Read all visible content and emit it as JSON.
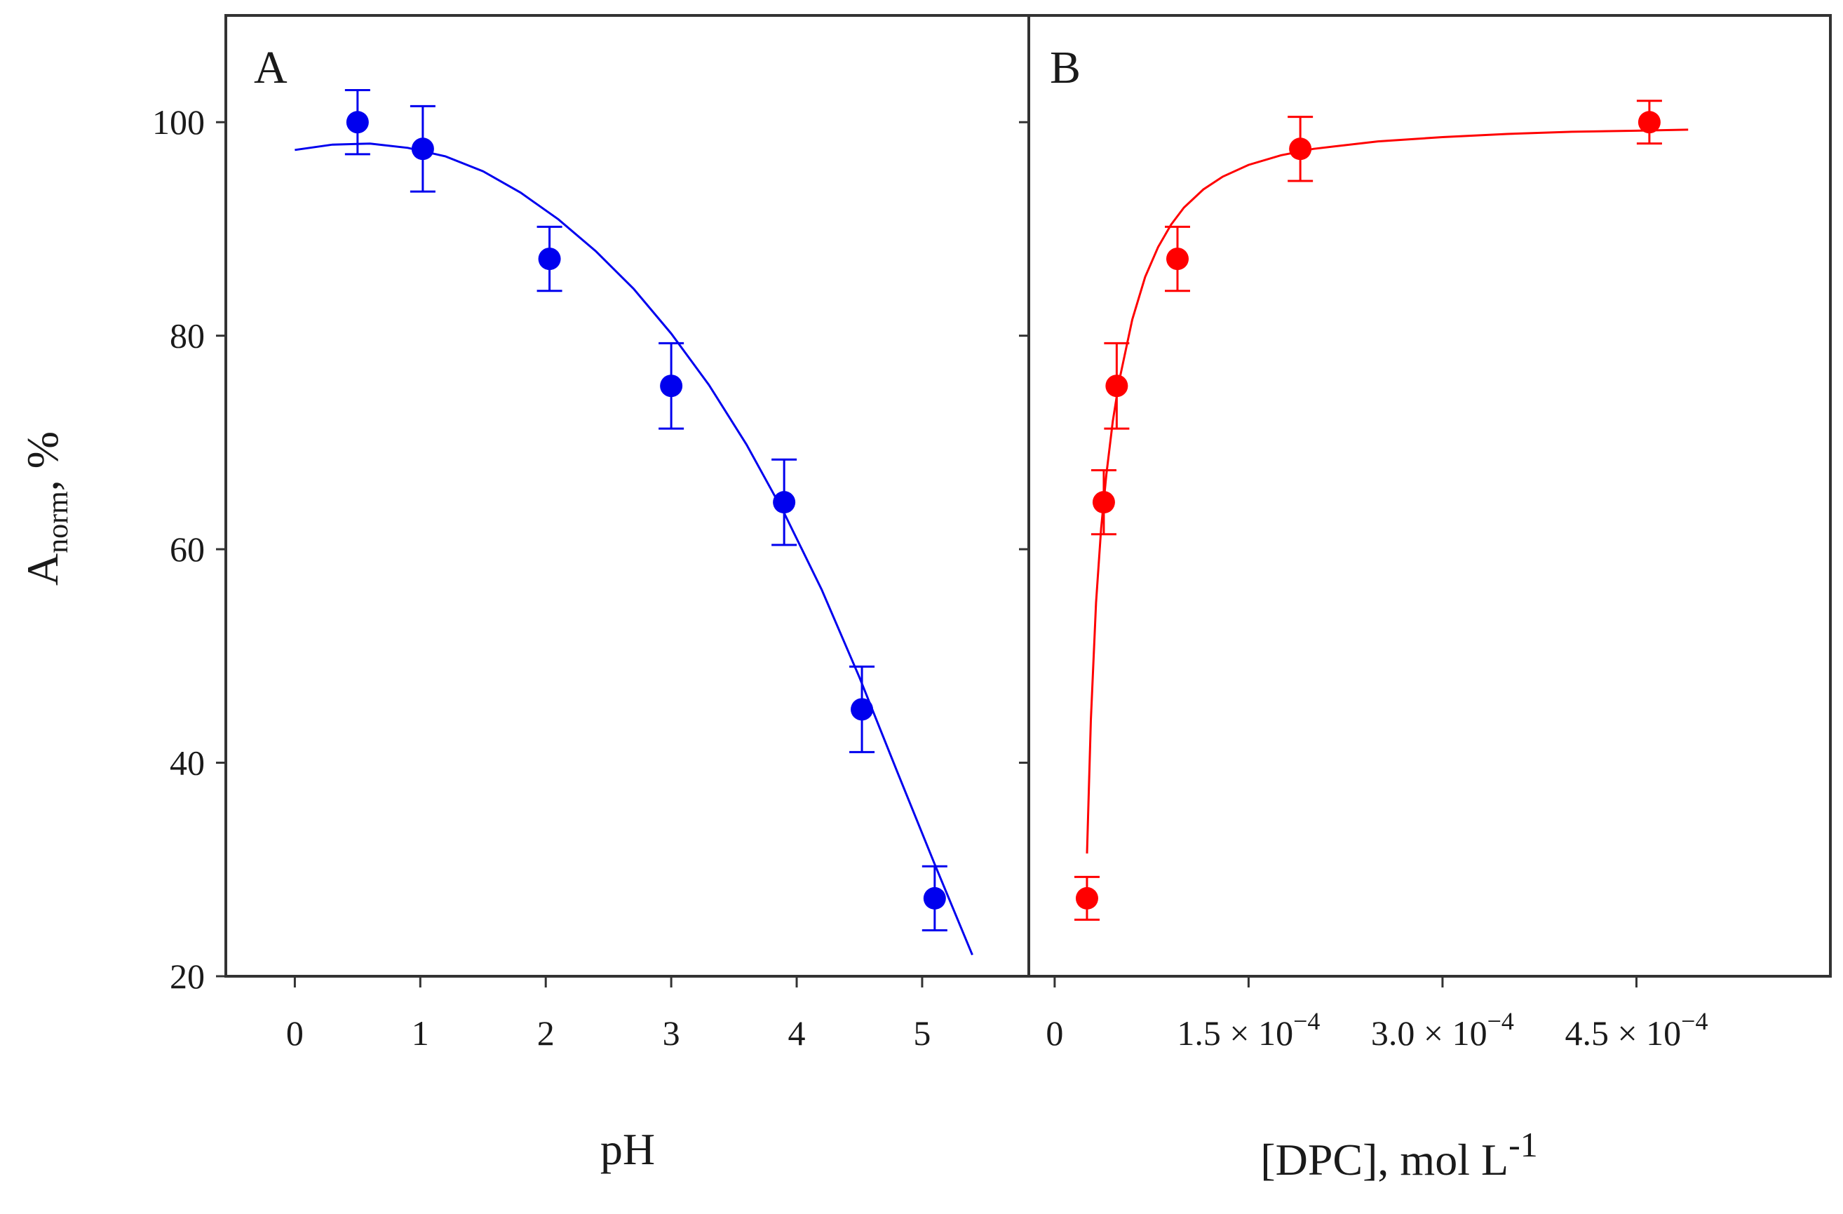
{
  "chart_data": [
    {
      "panel": "A",
      "type": "scatter",
      "xlabel": "pH",
      "ylabel_main": "A",
      "ylabel_sub": "norm",
      "ylabel_suffix": ", %",
      "xlim": [
        -0.55,
        5.85
      ],
      "ylim": [
        20,
        110
      ],
      "xticks": [
        0,
        1,
        2,
        3,
        4,
        5
      ],
      "xtick_labels": [
        "0",
        "1",
        "2",
        "3",
        "4",
        "5"
      ],
      "yticks": [
        20,
        40,
        60,
        80,
        100
      ],
      "ytick_labels": [
        "20",
        "40",
        "60",
        "80",
        "100"
      ],
      "color": "#0000ee",
      "points": [
        {
          "x": 0.5,
          "y": 100.0,
          "err": 3.0
        },
        {
          "x": 1.02,
          "y": 97.5,
          "err": 4.0
        },
        {
          "x": 2.03,
          "y": 87.2,
          "err": 3.0
        },
        {
          "x": 3.0,
          "y": 75.3,
          "err": 4.0
        },
        {
          "x": 3.9,
          "y": 64.4,
          "err": 4.0
        },
        {
          "x": 4.52,
          "y": 45.0,
          "err": 4.0
        },
        {
          "x": 5.1,
          "y": 27.3,
          "err": 3.0
        }
      ],
      "fit": {
        "x": [
          0,
          0.3,
          0.6,
          0.9,
          1.2,
          1.5,
          1.8,
          2.1,
          2.4,
          2.7,
          3.0,
          3.3,
          3.6,
          3.9,
          4.2,
          4.5,
          4.8,
          5.1,
          5.4
        ],
        "y": [
          97.4,
          97.9,
          98.0,
          97.6,
          96.8,
          95.4,
          93.4,
          90.9,
          87.9,
          84.4,
          80.2,
          75.4,
          69.8,
          63.4,
          56.2,
          48.0,
          39.2,
          30.5,
          22.0
        ]
      }
    },
    {
      "panel": "B",
      "type": "scatter",
      "xlabel": "[DPC], mol L",
      "xlabel_sup": "-1",
      "xlim": [
        -0.2,
        6.0
      ],
      "ylim": [
        20,
        110
      ],
      "xticks": [
        0,
        1.5,
        3.0,
        4.5
      ],
      "xtick_labels": [
        "0",
        "1.5 × 10",
        "3.0 × 10",
        "4.5 × 10"
      ],
      "xtick_exponents": [
        "",
        "−4",
        "−4",
        "−4"
      ],
      "yticks": [
        20,
        40,
        60,
        80,
        100
      ],
      "x_units_note": "x values in units of 1e-4 mol L-1",
      "color": "#ff0000",
      "points": [
        {
          "x": 0.25,
          "y": 27.3,
          "err": 2.0
        },
        {
          "x": 0.38,
          "y": 64.4,
          "err": 3.0
        },
        {
          "x": 0.48,
          "y": 75.3,
          "err": 4.0
        },
        {
          "x": 0.95,
          "y": 87.2,
          "err": 3.0
        },
        {
          "x": 1.9,
          "y": 97.5,
          "err": 3.0
        },
        {
          "x": 4.6,
          "y": 100.0,
          "err": 2.0
        }
      ],
      "fit": {
        "x": [
          0.25,
          0.28,
          0.32,
          0.36,
          0.4,
          0.45,
          0.5,
          0.6,
          0.7,
          0.8,
          0.9,
          1.0,
          1.15,
          1.3,
          1.5,
          1.75,
          2.0,
          2.5,
          3.0,
          3.5,
          4.0,
          4.5,
          4.9
        ],
        "y": [
          31.5,
          44.0,
          55.0,
          62.0,
          67.0,
          72.0,
          75.8,
          81.5,
          85.5,
          88.3,
          90.4,
          92.0,
          93.7,
          94.9,
          96.0,
          96.9,
          97.5,
          98.2,
          98.6,
          98.9,
          99.1,
          99.2,
          99.3
        ]
      }
    }
  ]
}
